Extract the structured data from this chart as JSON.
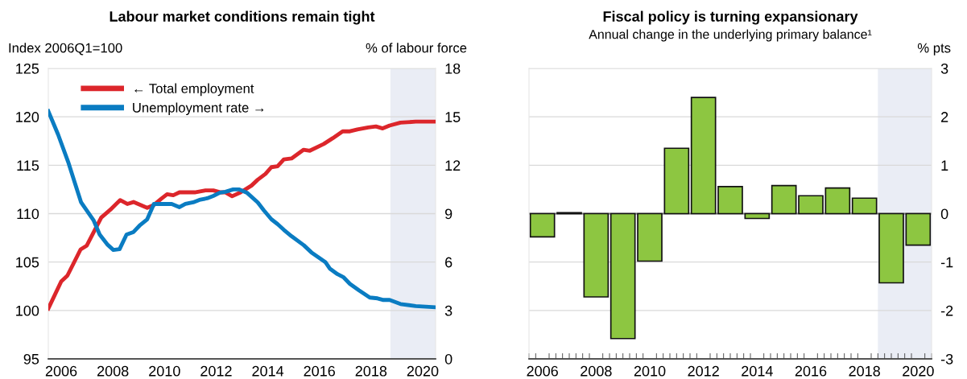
{
  "chart_data": [
    {
      "type": "line",
      "title": "Labour market conditions remain tight",
      "ylabel": "Index 2006Q1=100",
      "y2label": "% of labour force",
      "xlim": [
        2006,
        2021
      ],
      "xticks": [
        {
          "value": 2006.5,
          "label": "2006"
        },
        {
          "value": 2008.5,
          "label": "2008"
        },
        {
          "value": 2010.5,
          "label": "2010"
        },
        {
          "value": 2012.5,
          "label": "2012"
        },
        {
          "value": 2014.5,
          "label": "2014"
        },
        {
          "value": 2016.5,
          "label": "2016"
        },
        {
          "value": 2018.5,
          "label": "2018"
        },
        {
          "value": 2020.5,
          "label": "2020"
        }
      ],
      "ylim": [
        95,
        125
      ],
      "yticks": [
        95,
        100,
        105,
        110,
        115,
        120,
        125
      ],
      "y2lim": [
        0,
        18
      ],
      "y2ticks": [
        0,
        3,
        6,
        9,
        12,
        15,
        18
      ],
      "grid": "y",
      "legend": "top left",
      "bands": [
        {
          "axis": "x",
          "from": 2019.25,
          "to": 2021,
          "color": "#eaedf5"
        }
      ],
      "series": [
        {
          "name": "← Total employment",
          "color": "#dc262b",
          "x": [
            2006.0,
            2006.5,
            2006.74,
            2007.25,
            2007.49,
            2008.05,
            2008.4,
            2008.78,
            2009.06,
            2009.3,
            2009.83,
            2010.09,
            2010.36,
            2010.6,
            2010.84,
            2011.08,
            2011.31,
            2011.67,
            2012.09,
            2012.39,
            2012.68,
            2012.86,
            2013.12,
            2013.45,
            2013.87,
            2014.11,
            2014.41,
            2014.64,
            2014.88,
            2015.12,
            2015.42,
            2015.89,
            2016.13,
            2016.67,
            2017.02,
            2017.4,
            2017.68,
            2017.97,
            2018.39,
            2018.69,
            2018.95,
            2019.22,
            2019.64,
            2020.23,
            2021.0
          ],
          "values": [
            100.2,
            103.0,
            103.6,
            106.3,
            106.7,
            109.6,
            110.4,
            111.4,
            111.0,
            111.2,
            110.6,
            110.9,
            111.5,
            112.0,
            111.9,
            112.2,
            112.2,
            112.2,
            112.4,
            112.4,
            112.2,
            112.2,
            111.8,
            112.2,
            112.9,
            113.5,
            114.1,
            114.8,
            114.9,
            115.6,
            115.7,
            116.6,
            116.5,
            117.2,
            117.8,
            118.5,
            118.5,
            118.7,
            118.9,
            119.0,
            118.8,
            119.1,
            119.4,
            119.5,
            119.5
          ]
        },
        {
          "name": "Unemployment rate →",
          "color": "#0a7cc2",
          "axis": "y2",
          "x": [
            2006.0,
            2006.38,
            2006.77,
            2007.03,
            2007.27,
            2007.75,
            2007.99,
            2008.28,
            2008.52,
            2008.76,
            2009.03,
            2009.29,
            2009.56,
            2009.83,
            2010.09,
            2010.36,
            2010.78,
            2011.08,
            2011.31,
            2011.61,
            2011.85,
            2012.15,
            2012.39,
            2012.65,
            2012.86,
            2013.16,
            2013.4,
            2013.69,
            2014.11,
            2014.35,
            2014.64,
            2014.88,
            2015.12,
            2015.42,
            2015.89,
            2016.19,
            2016.73,
            2016.9,
            2017.2,
            2017.44,
            2017.68,
            2018.03,
            2018.45,
            2018.75,
            2018.98,
            2019.22,
            2019.64,
            2020.23,
            2021.0
          ],
          "values": [
            15.35,
            13.9,
            12.2,
            10.9,
            9.7,
            8.6,
            7.7,
            7.1,
            6.75,
            6.8,
            7.7,
            7.85,
            8.3,
            8.65,
            9.6,
            9.6,
            9.6,
            9.4,
            9.6,
            9.7,
            9.85,
            9.95,
            10.1,
            10.3,
            10.35,
            10.5,
            10.5,
            10.3,
            9.7,
            9.2,
            8.65,
            8.35,
            8.0,
            7.6,
            7.05,
            6.6,
            6.0,
            5.6,
            5.25,
            5.05,
            4.65,
            4.25,
            3.8,
            3.75,
            3.65,
            3.65,
            3.4,
            3.27,
            3.2
          ]
        }
      ]
    },
    {
      "type": "bar",
      "title": "Fiscal policy is turning expansionary",
      "subtitle": "Annual change in the underlying primary balance¹",
      "ylabel": "% pts",
      "x": [
        2006,
        2007,
        2008,
        2009,
        2010,
        2011,
        2012,
        2013,
        2014,
        2015,
        2016,
        2017,
        2018,
        2019,
        2020
      ],
      "values": [
        -0.48,
        0.02,
        -1.72,
        -2.58,
        -0.98,
        1.35,
        2.4,
        0.56,
        -0.1,
        0.58,
        0.37,
        0.53,
        0.32,
        -1.43,
        -0.65
      ],
      "color": "#8dc641",
      "xlim": [
        2005.5,
        2020.5
      ],
      "xticks": [
        2006,
        2008,
        2010,
        2012,
        2014,
        2016,
        2018,
        2020
      ],
      "ylim": [
        -3,
        3
      ],
      "yticks": [
        -3,
        -2,
        -1,
        0,
        1,
        2,
        3
      ],
      "grid": "y",
      "bands": [
        {
          "axis": "x",
          "from": 2018.5,
          "to": 2020.5,
          "color": "#eaedf5"
        }
      ],
      "ref_lines": [
        {
          "axis": "y",
          "value": 0,
          "color": "#808080"
        }
      ]
    }
  ]
}
